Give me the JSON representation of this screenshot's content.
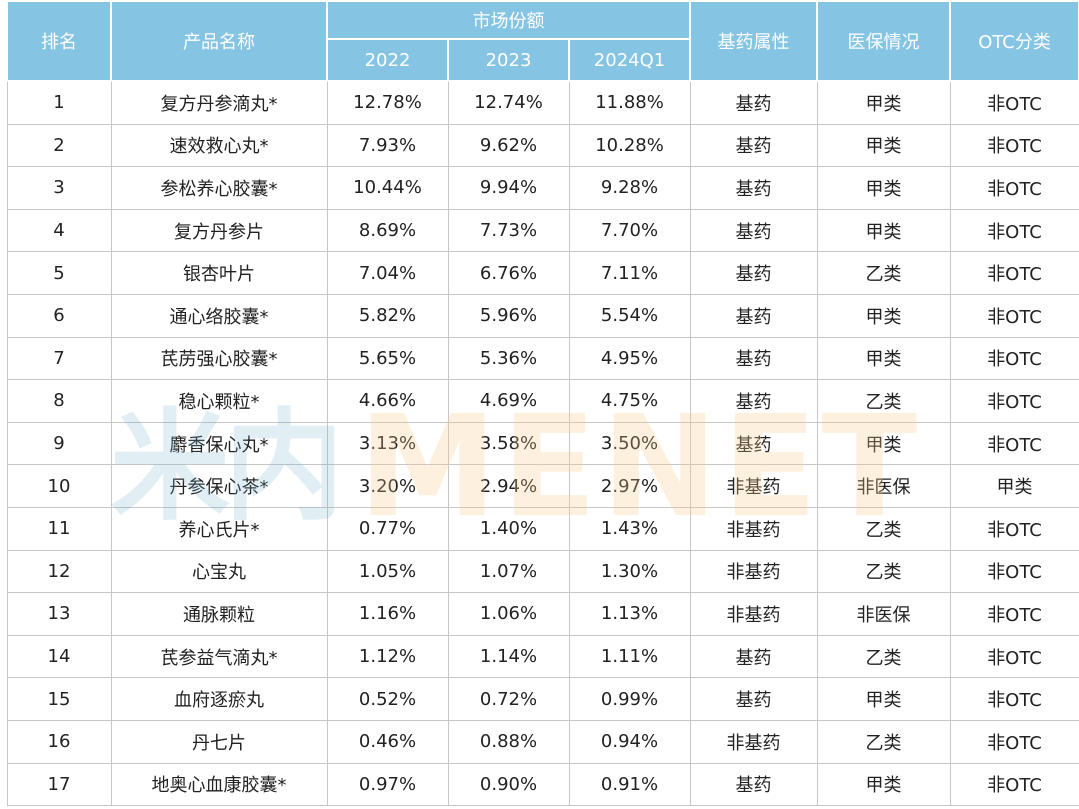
{
  "header": {
    "rank": "排名",
    "product": "产品名称",
    "market_share": "市场份额",
    "years": [
      "2022",
      "2023",
      "2024Q1"
    ],
    "essential": "基药属性",
    "insurance": "医保情况",
    "otc": "OTC分类"
  },
  "watermark": {
    "cn": "米内",
    "en": "MENET"
  },
  "rows": [
    {
      "rank": "1",
      "name": "复方丹参滴丸*",
      "s2022": "12.78%",
      "s2023": "12.74%",
      "s2024": "11.88%",
      "essential": "基药",
      "insurance": "甲类",
      "otc": "非OTC"
    },
    {
      "rank": "2",
      "name": "速效救心丸*",
      "s2022": "7.93%",
      "s2023": "9.62%",
      "s2024": "10.28%",
      "essential": "基药",
      "insurance": "甲类",
      "otc": "非OTC"
    },
    {
      "rank": "3",
      "name": "参松养心胶囊*",
      "s2022": "10.44%",
      "s2023": "9.94%",
      "s2024": "9.28%",
      "essential": "基药",
      "insurance": "甲类",
      "otc": "非OTC"
    },
    {
      "rank": "4",
      "name": "复方丹参片",
      "s2022": "8.69%",
      "s2023": "7.73%",
      "s2024": "7.70%",
      "essential": "基药",
      "insurance": "甲类",
      "otc": "非OTC"
    },
    {
      "rank": "5",
      "name": "银杏叶片",
      "s2022": "7.04%",
      "s2023": "6.76%",
      "s2024": "7.11%",
      "essential": "基药",
      "insurance": "乙类",
      "otc": "非OTC"
    },
    {
      "rank": "6",
      "name": "通心络胶囊*",
      "s2022": "5.82%",
      "s2023": "5.96%",
      "s2024": "5.54%",
      "essential": "基药",
      "insurance": "甲类",
      "otc": "非OTC"
    },
    {
      "rank": "7",
      "name": "芪苈强心胶囊*",
      "s2022": "5.65%",
      "s2023": "5.36%",
      "s2024": "4.95%",
      "essential": "基药",
      "insurance": "甲类",
      "otc": "非OTC"
    },
    {
      "rank": "8",
      "name": "稳心颗粒*",
      "s2022": "4.66%",
      "s2023": "4.69%",
      "s2024": "4.75%",
      "essential": "基药",
      "insurance": "乙类",
      "otc": "非OTC"
    },
    {
      "rank": "9",
      "name": "麝香保心丸*",
      "s2022": "3.13%",
      "s2023": "3.58%",
      "s2024": "3.50%",
      "essential": "基药",
      "insurance": "甲类",
      "otc": "非OTC"
    },
    {
      "rank": "10",
      "name": "丹参保心茶*",
      "s2022": "3.20%",
      "s2023": "2.94%",
      "s2024": "2.97%",
      "essential": "非基药",
      "insurance": "非医保",
      "otc": "甲类"
    },
    {
      "rank": "11",
      "name": "养心氏片*",
      "s2022": "0.77%",
      "s2023": "1.40%",
      "s2024": "1.43%",
      "essential": "非基药",
      "insurance": "乙类",
      "otc": "非OTC"
    },
    {
      "rank": "12",
      "name": "心宝丸",
      "s2022": "1.05%",
      "s2023": "1.07%",
      "s2024": "1.30%",
      "essential": "非基药",
      "insurance": "乙类",
      "otc": "非OTC"
    },
    {
      "rank": "13",
      "name": "通脉颗粒",
      "s2022": "1.16%",
      "s2023": "1.06%",
      "s2024": "1.13%",
      "essential": "非基药",
      "insurance": "非医保",
      "otc": "非OTC"
    },
    {
      "rank": "14",
      "name": "芪参益气滴丸*",
      "s2022": "1.12%",
      "s2023": "1.14%",
      "s2024": "1.11%",
      "essential": "基药",
      "insurance": "乙类",
      "otc": "非OTC"
    },
    {
      "rank": "15",
      "name": "血府逐瘀丸",
      "s2022": "0.52%",
      "s2023": "0.72%",
      "s2024": "0.99%",
      "essential": "基药",
      "insurance": "甲类",
      "otc": "非OTC"
    },
    {
      "rank": "16",
      "name": "丹七片",
      "s2022": "0.46%",
      "s2023": "0.88%",
      "s2024": "0.94%",
      "essential": "非基药",
      "insurance": "乙类",
      "otc": "非OTC"
    },
    {
      "rank": "17",
      "name": "地奥心血康胶囊*",
      "s2022": "0.97%",
      "s2023": "0.90%",
      "s2024": "0.91%",
      "essential": "基药",
      "insurance": "甲类",
      "otc": "非OTC"
    }
  ]
}
